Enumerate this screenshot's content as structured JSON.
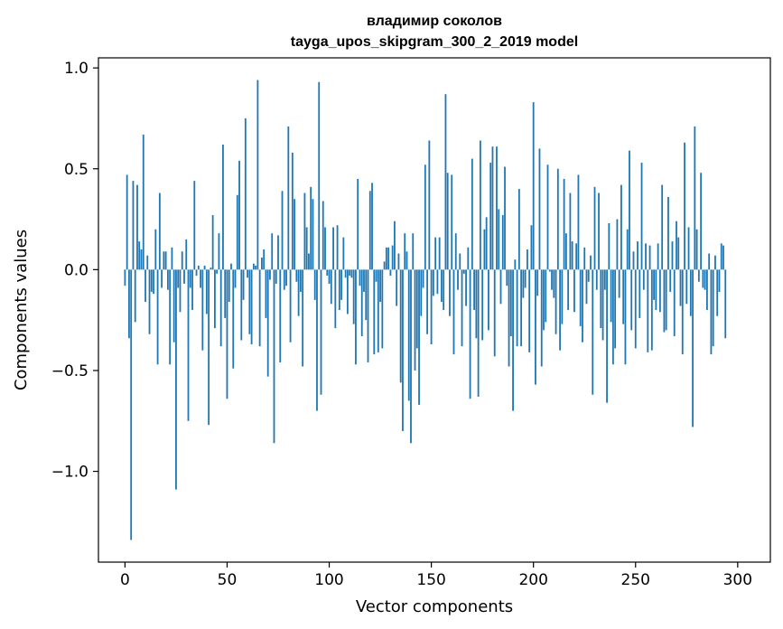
{
  "chart_data": {
    "type": "bar",
    "title_line1": "владимир соколов",
    "title_line2": "tayga_upos_skipgram_300_2_2019 model",
    "xlabel": "Vector components",
    "ylabel": "Components values",
    "xlim": [
      -13,
      316
    ],
    "ylim": [
      -1.45,
      1.05
    ],
    "xticks": [
      0,
      50,
      100,
      150,
      200,
      250,
      300
    ],
    "xtick_labels": [
      "0",
      "50",
      "100",
      "150",
      "200",
      "250",
      "300"
    ],
    "yticks": [
      -1.0,
      -0.5,
      0.0,
      0.5,
      1.0
    ],
    "ytick_labels": [
      "−1.0",
      "−0.5",
      "0.0",
      "0.5",
      "1.0"
    ],
    "bar_color": "#1f77b4",
    "values": [
      -0.08,
      0.47,
      -0.34,
      -1.34,
      0.44,
      -0.26,
      0.42,
      0.14,
      0.1,
      0.67,
      -0.16,
      0.07,
      -0.32,
      -0.11,
      -0.12,
      0.2,
      -0.47,
      0.38,
      -0.09,
      0.09,
      0.09,
      -0.1,
      -0.47,
      0.11,
      -0.36,
      -1.09,
      -0.09,
      -0.21,
      0.09,
      -0.07,
      0.15,
      -0.75,
      -0.09,
      -0.2,
      0.44,
      -0.03,
      0.02,
      -0.09,
      -0.4,
      0.02,
      -0.22,
      -0.77,
      0.01,
      0.27,
      -0.29,
      -0.02,
      0.18,
      -0.38,
      0.62,
      -0.24,
      -0.64,
      -0.16,
      0.03,
      -0.49,
      -0.09,
      0.37,
      0.54,
      -0.35,
      -0.15,
      0.75,
      -0.04,
      -0.32,
      -0.37,
      0.03,
      0.02,
      0.94,
      -0.38,
      0.06,
      0.1,
      -0.24,
      -0.53,
      -0.05,
      0.18,
      -0.86,
      -0.07,
      0.17,
      -0.46,
      0.39,
      -0.1,
      -0.08,
      0.71,
      -0.36,
      0.58,
      0.35,
      -0.06,
      -0.23,
      -0.11,
      -0.48,
      0.38,
      0.21,
      0.08,
      0.41,
      0.35,
      -0.15,
      -0.7,
      0.93,
      -0.62,
      0.34,
      0.21,
      -0.03,
      -0.07,
      -0.17,
      0.21,
      -0.29,
      0.22,
      -0.2,
      -0.15,
      0.16,
      -0.04,
      -0.22,
      -0.03,
      -0.04,
      -0.27,
      -0.47,
      0.45,
      -0.08,
      -0.33,
      -0.11,
      -0.25,
      -0.46,
      0.39,
      0.43,
      -0.42,
      -0.06,
      -0.41,
      -0.16,
      -0.39,
      0.04,
      0.11,
      0.11,
      -0.03,
      0.12,
      0.24,
      -0.18,
      0.08,
      -0.56,
      -0.8,
      0.18,
      0.09,
      -0.65,
      -0.86,
      0.18,
      -0.5,
      -0.39,
      -0.67,
      -0.23,
      -0.09,
      0.52,
      -0.32,
      0.64,
      -0.37,
      -0.13,
      0.16,
      -0.12,
      0.16,
      -0.16,
      -0.2,
      0.87,
      0.48,
      -0.23,
      0.47,
      -0.42,
      0.18,
      -0.1,
      0.08,
      -0.38,
      -0.02,
      -0.18,
      0.11,
      -0.64,
      0.55,
      -0.2,
      -0.34,
      -0.63,
      0.64,
      -0.35,
      0.2,
      0.26,
      -0.3,
      0.53,
      0.61,
      -0.43,
      0.61,
      0.3,
      -0.17,
      0.27,
      0.51,
      -0.08,
      -0.48,
      -0.33,
      -0.7,
      0.05,
      -0.38,
      0.4,
      -0.38,
      -0.14,
      -0.09,
      0.1,
      -0.41,
      0.22,
      0.83,
      -0.57,
      -0.13,
      0.6,
      -0.48,
      -0.3,
      -0.26,
      0.52,
      -0.01,
      -0.1,
      -0.14,
      -0.32,
      0.5,
      -0.4,
      -0.27,
      0.45,
      0.18,
      -0.2,
      0.38,
      0.14,
      -0.21,
      0.13,
      0.47,
      -0.28,
      -0.36,
      0.11,
      -0.17,
      -0.06,
      0.07,
      -0.62,
      0.41,
      -0.1,
      0.38,
      -0.29,
      -0.35,
      -0.1,
      -0.66,
      0.23,
      -0.26,
      -0.47,
      -0.39,
      0.25,
      -0.14,
      0.42,
      -0.27,
      -0.47,
      0.2,
      0.59,
      -0.3,
      0.09,
      -0.39,
      0.14,
      -0.24,
      0.53,
      -0.1,
      0.13,
      -0.41,
      0.12,
      -0.4,
      -0.15,
      -0.2,
      0.13,
      -0.21,
      0.42,
      -0.31,
      -0.3,
      0.36,
      -0.11,
      0.14,
      -0.33,
      0.24,
      0.16,
      -0.18,
      -0.42,
      0.63,
      -0.17,
      0.21,
      -0.23,
      -0.78,
      0.71,
      0.2,
      -0.06,
      0.48,
      -0.09,
      -0.1,
      -0.2,
      0.08,
      -0.42,
      -0.38,
      0.07,
      -0.23,
      -0.11,
      0.13,
      0.12,
      -0.34
    ]
  }
}
